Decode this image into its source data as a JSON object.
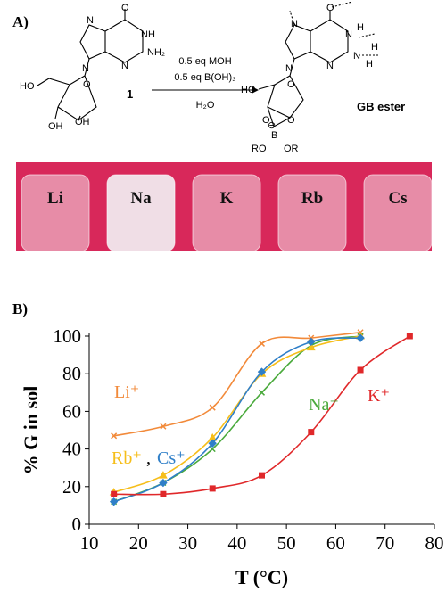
{
  "panel_a": {
    "label": "A)",
    "reactant_atoms": [
      "O",
      "N",
      "NH",
      "N",
      "N",
      "NH₂",
      "HO",
      "O",
      "OH",
      "OH"
    ],
    "compound_number": "1",
    "reagents": [
      "0.5 eq MOH",
      "0.5 eq B(OH)₃",
      "H₂O"
    ],
    "product_atoms": [
      "O",
      "N",
      "N",
      "H",
      "N",
      "N",
      "H",
      "N",
      "H",
      "HO",
      "O",
      "O",
      "O",
      "B",
      "⊖",
      "RO",
      "OR"
    ],
    "product_name": "GB ester",
    "vials": [
      "Li",
      "Na",
      "K",
      "Rb",
      "Cs"
    ]
  },
  "chart_data": {
    "type": "line",
    "panel_label": "B)",
    "x_label": "T (°C)",
    "y_label": "% G in sol",
    "xlim": [
      10,
      80
    ],
    "xticks": [
      10,
      20,
      30,
      40,
      50,
      60,
      70,
      80
    ],
    "ylim": [
      0,
      100
    ],
    "yticks": [
      0,
      20,
      40,
      60,
      80,
      100
    ],
    "label_separator": ",",
    "series": [
      {
        "name": "Li⁺",
        "color": "#f28a3a",
        "marker": "cross",
        "x": [
          15,
          25,
          35,
          45,
          55,
          65
        ],
        "values": [
          47,
          52,
          62,
          96,
          99,
          102
        ]
      },
      {
        "name": "Na⁺",
        "color": "#4aaa3c",
        "marker": "cross",
        "x": [
          15,
          25,
          35,
          45,
          55,
          65
        ],
        "values": [
          12,
          22,
          40,
          70,
          95,
          100
        ]
      },
      {
        "name": "Rb⁺",
        "color": "#f6be1a",
        "marker": "triangle",
        "x": [
          15,
          25,
          35,
          45,
          55,
          65
        ],
        "values": [
          17,
          26,
          46,
          80,
          94,
          100
        ]
      },
      {
        "name": "Cs⁺",
        "color": "#2f7fc8",
        "marker": "diamond",
        "x": [
          15,
          25,
          35,
          45,
          55,
          65
        ],
        "values": [
          12,
          22,
          43,
          81,
          97,
          99
        ]
      },
      {
        "name": "K⁺",
        "color": "#e0282a",
        "marker": "square",
        "x": [
          15,
          25,
          35,
          45,
          55,
          65,
          75
        ],
        "values": [
          16,
          16,
          19,
          26,
          49,
          82,
          100
        ]
      }
    ]
  }
}
